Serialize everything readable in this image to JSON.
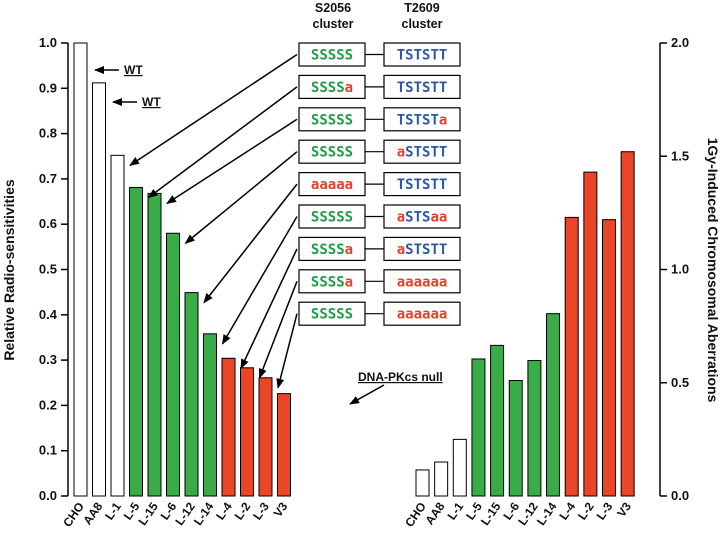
{
  "colors": {
    "white_bar": "#ffffff",
    "green_bar": "#3aac47",
    "red_bar": "#ea4526",
    "ser_green": "#1f9b46",
    "thr_blue": "#2d56a6",
    "ala_red": "#e8402a",
    "stroke": "#000000"
  },
  "chart_data": [
    {
      "type": "bar",
      "title": "",
      "xlabel": "",
      "ylabel": "Relative Radio-sensitivities",
      "ylim": [
        0,
        1.0
      ],
      "yticks": [
        "0.0",
        "0.1",
        "0.2",
        "0.3",
        "0.4",
        "0.5",
        "0.6",
        "0.7",
        "0.8",
        "0.9",
        "1.0"
      ],
      "categories": [
        "CHO",
        "AA8",
        "L-1",
        "L-5",
        "L-15",
        "L-6",
        "L-12",
        "L-14",
        "L-4",
        "L-2",
        "L-3",
        "V3"
      ],
      "values": [
        1.0,
        0.912,
        0.752,
        0.681,
        0.668,
        0.58,
        0.449,
        0.358,
        0.304,
        0.283,
        0.261,
        0.226
      ],
      "bar_colors": [
        "white",
        "white",
        "white",
        "green",
        "green",
        "green",
        "green",
        "green",
        "red",
        "red",
        "red",
        "red"
      ]
    },
    {
      "type": "bar",
      "title": "",
      "xlabel": "",
      "ylabel": "1Gy-Induced Chromosomal Aberrations",
      "ylim": [
        0,
        2.0
      ],
      "yticks": [
        "0.0",
        "0.5",
        "1.0",
        "1.5",
        "2.0"
      ],
      "categories": [
        "CHO",
        "AA8",
        "L-1",
        "L-5",
        "L-15",
        "L-6",
        "L-12",
        "L-14",
        "L-4",
        "L-2",
        "L-3",
        "V3"
      ],
      "values": [
        0.115,
        0.15,
        0.25,
        0.605,
        0.665,
        0.51,
        0.598,
        0.805,
        1.23,
        1.43,
        1.22,
        1.52
      ],
      "bar_colors": [
        "white",
        "white",
        "white",
        "green",
        "green",
        "green",
        "green",
        "green",
        "red",
        "red",
        "red",
        "red"
      ]
    }
  ],
  "cluster_headers": {
    "s2056_line1": "S2056",
    "s2056_line2": "cluster",
    "t2609_line1": "T2609",
    "t2609_line2": "cluster"
  },
  "mutant_rows": [
    {
      "s": "SSSSS",
      "t": "TSTSTT",
      "points_to": "L-1"
    },
    {
      "s": "SSSSa",
      "t": "TSTSTT",
      "points_to": "L-5"
    },
    {
      "s": "SSSSS",
      "t": "TSTSTa",
      "points_to": "L-15"
    },
    {
      "s": "SSSSS",
      "t": "aSTSTT",
      "points_to": "L-6"
    },
    {
      "s": "aaaaa",
      "t": "TSTSTT",
      "points_to": "L-12"
    },
    {
      "s": "SSSSS",
      "t": "aSTSaa",
      "points_to": "L-14"
    },
    {
      "s": "SSSSa",
      "t": "aSTSTT",
      "points_to": "L-4"
    },
    {
      "s": "SSSSa",
      "t": "aaaaaa",
      "points_to": "L-2"
    },
    {
      "s": "SSSSS",
      "t": "aaaaaa",
      "points_to": "L-3"
    }
  ],
  "annotations": {
    "wt1": "WT",
    "wt2": "WT",
    "null_label": "DNA-PKcs null"
  }
}
